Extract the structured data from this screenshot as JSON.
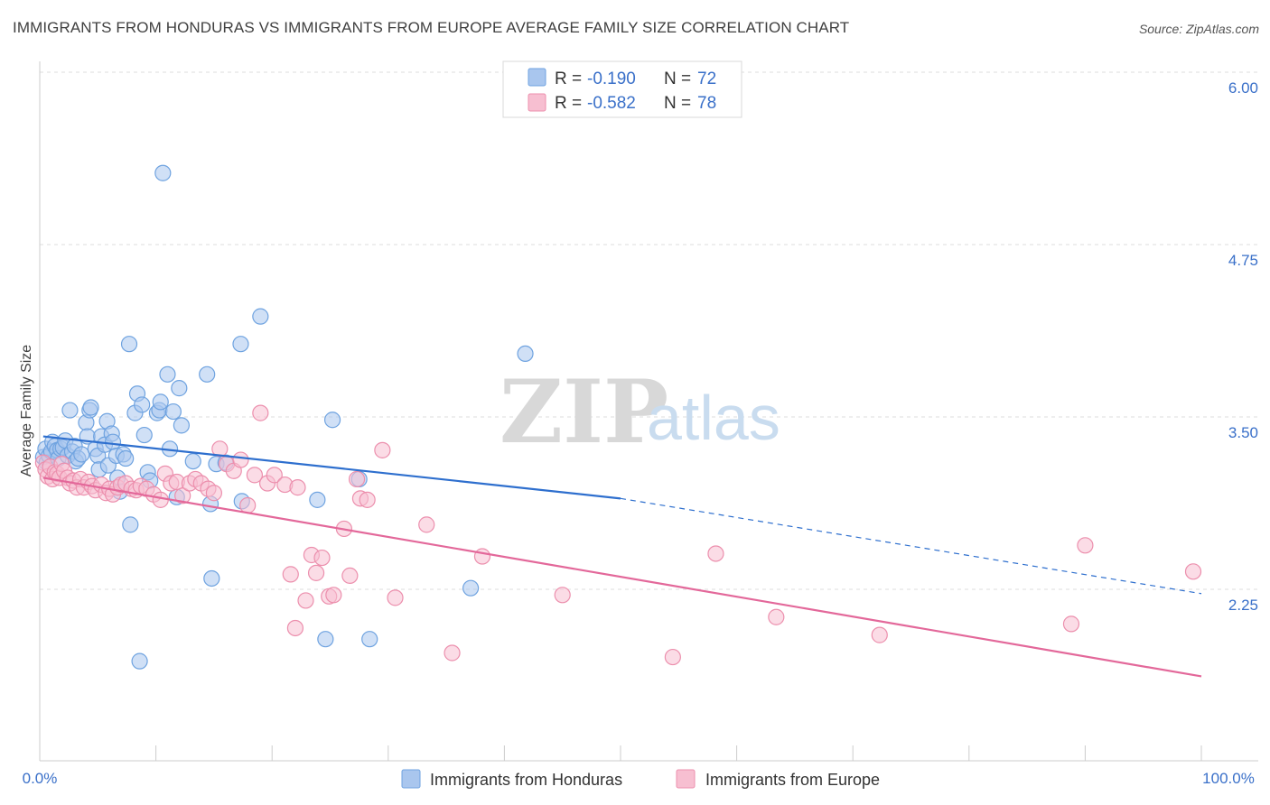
{
  "title": "IMMIGRANTS FROM HONDURAS VS IMMIGRANTS FROM EUROPE AVERAGE FAMILY SIZE CORRELATION CHART",
  "source": "Source: ZipAtlas.com",
  "watermark": {
    "zip": "ZIP",
    "atlas": "atlas"
  },
  "legend": {
    "rows": [
      {
        "r_label": "R =",
        "r_value": "-0.190",
        "n_label": "N =",
        "n_value": "72",
        "color": "#6fa3e0"
      },
      {
        "r_label": "R =",
        "r_value": "-0.582",
        "n_label": "N =",
        "n_value": "78",
        "color": "#f09ab5"
      }
    ]
  },
  "bottom_legend": {
    "honduras": "Immigrants from Honduras",
    "europe": "Immigrants from Europe"
  },
  "colors": {
    "honduras_fill": "#a9c6ee",
    "honduras_stroke": "#6fa3e0",
    "honduras_line": "#2e6fce",
    "europe_fill": "#f7bfd1",
    "europe_stroke": "#ec8fad",
    "europe_line": "#e3689a",
    "grid": "#dddddd",
    "tick_text": "#3a70c9"
  },
  "chart_data": {
    "type": "scatter",
    "title": "IMMIGRANTS FROM HONDURAS VS IMMIGRANTS FROM EUROPE AVERAGE FAMILY SIZE CORRELATION CHART",
    "xlabel": "",
    "ylabel": "Average Family Size",
    "xlim": [
      0,
      100
    ],
    "ylim": [
      1.0,
      6.1
    ],
    "x_tick_labels": [
      "0.0%",
      "100.0%"
    ],
    "y_ticks": [
      2.25,
      3.5,
      4.75,
      6.0
    ],
    "y_tick_labels": [
      "2.25",
      "3.50",
      "4.75",
      "6.00"
    ],
    "grid": true,
    "legend_position": "top-center",
    "series": [
      {
        "name": "Immigrants from Honduras",
        "R": -0.19,
        "N": 72,
        "trend": {
          "x_start": 0.3,
          "y_start": 3.47,
          "x_solid_end": 50,
          "y_solid_end": 3.02,
          "x_end": 100,
          "y_end": 2.33
        },
        "points": [
          [
            0.3,
            3.32
          ],
          [
            0.5,
            3.38
          ],
          [
            0.6,
            3.28
          ],
          [
            0.8,
            3.33
          ],
          [
            1.0,
            3.36
          ],
          [
            1.1,
            3.43
          ],
          [
            1.3,
            3.4
          ],
          [
            1.5,
            3.37
          ],
          [
            1.6,
            3.31
          ],
          [
            1.8,
            3.38
          ],
          [
            2.0,
            3.39
          ],
          [
            2.2,
            3.44
          ],
          [
            2.4,
            3.33
          ],
          [
            2.6,
            3.66
          ],
          [
            2.8,
            3.36
          ],
          [
            3.0,
            3.4
          ],
          [
            3.1,
            3.29
          ],
          [
            3.3,
            3.31
          ],
          [
            3.6,
            3.34
          ],
          [
            4.0,
            3.57
          ],
          [
            4.1,
            3.47
          ],
          [
            4.3,
            3.66
          ],
          [
            4.4,
            3.68
          ],
          [
            4.8,
            3.38
          ],
          [
            5.0,
            3.33
          ],
          [
            5.1,
            3.23
          ],
          [
            5.3,
            3.47
          ],
          [
            5.6,
            3.41
          ],
          [
            5.8,
            3.58
          ],
          [
            5.9,
            3.26
          ],
          [
            6.2,
            3.49
          ],
          [
            6.3,
            3.43
          ],
          [
            6.6,
            3.33
          ],
          [
            6.7,
            3.17
          ],
          [
            6.9,
            3.07
          ],
          [
            7.2,
            3.34
          ],
          [
            7.4,
            3.31
          ],
          [
            7.7,
            4.14
          ],
          [
            7.8,
            2.83
          ],
          [
            8.2,
            3.64
          ],
          [
            8.4,
            3.78
          ],
          [
            8.6,
            1.84
          ],
          [
            8.8,
            3.7
          ],
          [
            9.0,
            3.48
          ],
          [
            9.3,
            3.21
          ],
          [
            9.5,
            3.15
          ],
          [
            10.1,
            3.64
          ],
          [
            10.3,
            3.66
          ],
          [
            10.4,
            3.72
          ],
          [
            10.6,
            5.38
          ],
          [
            11.0,
            3.92
          ],
          [
            11.2,
            3.38
          ],
          [
            11.5,
            3.65
          ],
          [
            11.8,
            3.03
          ],
          [
            12.0,
            3.82
          ],
          [
            12.2,
            3.55
          ],
          [
            13.2,
            3.29
          ],
          [
            14.4,
            3.92
          ],
          [
            14.7,
            2.98
          ],
          [
            14.8,
            2.44
          ],
          [
            15.2,
            3.27
          ],
          [
            16.0,
            3.28
          ],
          [
            17.3,
            4.14
          ],
          [
            17.4,
            3.0
          ],
          [
            19.0,
            4.34
          ],
          [
            23.9,
            3.01
          ],
          [
            24.6,
            2.0
          ],
          [
            25.2,
            3.59
          ],
          [
            27.5,
            3.16
          ],
          [
            28.4,
            2.0
          ],
          [
            37.1,
            2.37
          ],
          [
            41.8,
            4.07
          ]
        ]
      },
      {
        "name": "Immigrants from Europe",
        "R": -0.582,
        "N": 78,
        "trend": {
          "x_start": 0.3,
          "y_start": 3.17,
          "x_end": 100,
          "y_end": 1.73
        },
        "points": [
          [
            0.3,
            3.28
          ],
          [
            0.5,
            3.23
          ],
          [
            0.7,
            3.18
          ],
          [
            0.9,
            3.25
          ],
          [
            1.1,
            3.16
          ],
          [
            1.3,
            3.21
          ],
          [
            1.5,
            3.2
          ],
          [
            1.7,
            3.17
          ],
          [
            1.9,
            3.27
          ],
          [
            2.1,
            3.22
          ],
          [
            2.4,
            3.17
          ],
          [
            2.6,
            3.13
          ],
          [
            2.9,
            3.15
          ],
          [
            3.2,
            3.1
          ],
          [
            3.5,
            3.16
          ],
          [
            3.8,
            3.1
          ],
          [
            4.2,
            3.14
          ],
          [
            4.5,
            3.11
          ],
          [
            4.8,
            3.08
          ],
          [
            5.3,
            3.12
          ],
          [
            5.7,
            3.06
          ],
          [
            6.0,
            3.09
          ],
          [
            6.3,
            3.05
          ],
          [
            6.7,
            3.1
          ],
          [
            7.0,
            3.12
          ],
          [
            7.4,
            3.13
          ],
          [
            7.9,
            3.09
          ],
          [
            8.3,
            3.08
          ],
          [
            8.7,
            3.11
          ],
          [
            9.2,
            3.09
          ],
          [
            9.8,
            3.05
          ],
          [
            10.4,
            3.01
          ],
          [
            10.8,
            3.2
          ],
          [
            11.3,
            3.13
          ],
          [
            11.8,
            3.14
          ],
          [
            12.3,
            3.04
          ],
          [
            12.9,
            3.13
          ],
          [
            13.4,
            3.16
          ],
          [
            13.9,
            3.13
          ],
          [
            14.5,
            3.09
          ],
          [
            15.0,
            3.06
          ],
          [
            15.5,
            3.38
          ],
          [
            16.1,
            3.27
          ],
          [
            16.7,
            3.22
          ],
          [
            17.3,
            3.3
          ],
          [
            17.9,
            2.97
          ],
          [
            18.5,
            3.19
          ],
          [
            19.0,
            3.64
          ],
          [
            19.6,
            3.13
          ],
          [
            20.2,
            3.19
          ],
          [
            21.1,
            3.12
          ],
          [
            21.6,
            2.47
          ],
          [
            22.2,
            3.1
          ],
          [
            22.9,
            2.28
          ],
          [
            23.4,
            2.61
          ],
          [
            23.8,
            2.48
          ],
          [
            24.3,
            2.59
          ],
          [
            24.9,
            2.31
          ],
          [
            25.3,
            2.32
          ],
          [
            26.2,
            2.8
          ],
          [
            26.7,
            2.46
          ],
          [
            27.3,
            3.16
          ],
          [
            27.6,
            3.02
          ],
          [
            28.2,
            3.01
          ],
          [
            29.5,
            3.37
          ],
          [
            30.6,
            2.3
          ],
          [
            33.3,
            2.83
          ],
          [
            35.5,
            1.9
          ],
          [
            38.1,
            2.6
          ],
          [
            45.0,
            2.32
          ],
          [
            54.5,
            1.87
          ],
          [
            58.2,
            2.62
          ],
          [
            63.4,
            2.16
          ],
          [
            72.3,
            2.03
          ],
          [
            88.8,
            2.11
          ],
          [
            90.0,
            2.68
          ],
          [
            99.3,
            2.49
          ],
          [
            22.0,
            2.08
          ]
        ]
      }
    ]
  }
}
